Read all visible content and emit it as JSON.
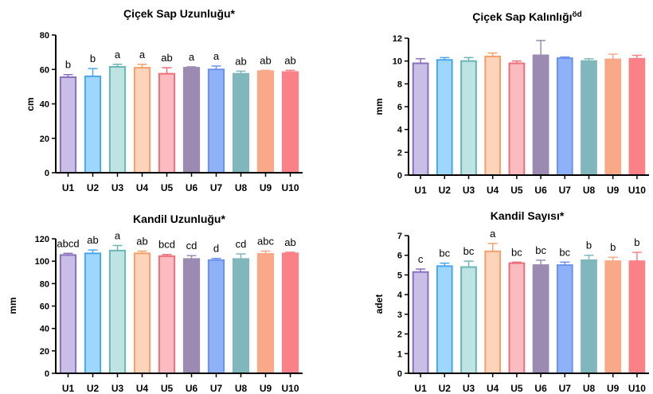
{
  "chart_data": [
    {
      "type": "bar",
      "title": "Çiçek Sap Uzunluğu*",
      "ylabel": "cm",
      "xlabel": "",
      "ylim": [
        0,
        80
      ],
      "yticks": [
        0,
        20,
        40,
        60,
        80
      ],
      "categories": [
        "U1",
        "U2",
        "U3",
        "U4",
        "U5",
        "U6",
        "U7",
        "U8",
        "U9",
        "U10"
      ],
      "values": [
        55.5,
        56,
        61.5,
        61,
        57.5,
        61,
        60,
        57.5,
        59,
        58.5
      ],
      "errors": [
        1.5,
        4.5,
        1.5,
        2,
        3.5,
        0.5,
        2,
        1.5,
        0.5,
        1
      ],
      "letters": [
        "b",
        "b",
        "a",
        "a",
        "ab",
        "a",
        "a",
        "ab",
        "ab",
        "ab"
      ]
    },
    {
      "type": "bar",
      "title": "Çiçek Sap Kalınlığı",
      "title_sup": "öd",
      "ylabel": "mm",
      "xlabel": "",
      "ylim": [
        0,
        12
      ],
      "yticks": [
        0,
        2,
        4,
        6,
        8,
        10,
        12
      ],
      "categories": [
        "U1",
        "U2",
        "U3",
        "U4",
        "U5",
        "U6",
        "U7",
        "U8",
        "U9",
        "U10"
      ],
      "values": [
        9.8,
        10.1,
        10.0,
        10.4,
        9.8,
        10.5,
        10.25,
        10.0,
        10.15,
        10.2
      ],
      "errors": [
        0.4,
        0.2,
        0.3,
        0.3,
        0.2,
        1.3,
        0.1,
        0.2,
        0.45,
        0.3
      ],
      "letters": []
    },
    {
      "type": "bar",
      "title": "Kandil Uzunluğu*",
      "ylabel": "mm",
      "xlabel": "",
      "ylim": [
        0,
        120
      ],
      "yticks": [
        0,
        20,
        40,
        60,
        80,
        100,
        120
      ],
      "categories": [
        "U1",
        "U2",
        "U3",
        "U4",
        "U5",
        "U6",
        "U7",
        "U8",
        "U9",
        "U10"
      ],
      "values": [
        105.5,
        107,
        109.5,
        107,
        104.5,
        102,
        101,
        102,
        106.5,
        107
      ],
      "errors": [
        1.5,
        3,
        4.5,
        2,
        1.5,
        3,
        1.5,
        4.5,
        2.5,
        1
      ],
      "letters": [
        "abcd",
        "ab",
        "a",
        "ab",
        "bcd",
        "cd",
        "d",
        "cd",
        "abc",
        "ab"
      ]
    },
    {
      "type": "bar",
      "title": "Kandil Sayısı*",
      "ylabel": "adet",
      "xlabel": "",
      "ylim": [
        0,
        7
      ],
      "yticks": [
        0,
        1,
        2,
        3,
        4,
        5,
        6,
        7
      ],
      "categories": [
        "U1",
        "U2",
        "U3",
        "U4",
        "U5",
        "U6",
        "U7",
        "U8",
        "U9",
        "U10"
      ],
      "values": [
        5.15,
        5.45,
        5.4,
        6.2,
        5.6,
        5.5,
        5.5,
        5.75,
        5.7,
        5.7
      ],
      "errors": [
        0.15,
        0.15,
        0.3,
        0.4,
        0.05,
        0.25,
        0.15,
        0.25,
        0.2,
        0.45
      ],
      "letters": [
        "c",
        "bc",
        "bc",
        "a",
        "bc",
        "bc",
        "bc",
        "b",
        "b",
        "b"
      ]
    }
  ],
  "colors": {
    "fills": [
      "#c9bfe6",
      "#9fd6fb",
      "#bde3e2",
      "#fdd3b9",
      "#fbbcc1",
      "#9b8bb2",
      "#8fb1f7",
      "#80b7bc",
      "#f9a987",
      "#fb8189"
    ],
    "strokes": [
      "#8a6fc0",
      "#4aa8ef",
      "#6ab6b4",
      "#f5a06a",
      "#ee6f7a",
      "#9b8bb2",
      "#6b93ee",
      "#80b7bc",
      "#f9a987",
      "#fb8189"
    ]
  }
}
